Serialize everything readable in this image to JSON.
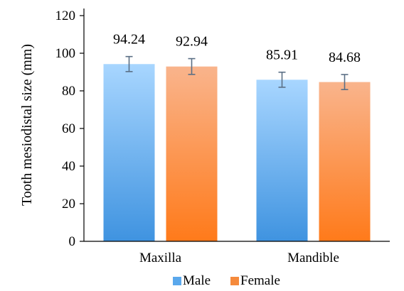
{
  "chart_data": {
    "type": "bar",
    "categories": [
      "Maxilla",
      "Mandible"
    ],
    "series": [
      {
        "name": "Male",
        "values": [
          94.24,
          85.91
        ],
        "error": [
          4.0,
          4.0
        ],
        "color_top": "#a8d6ff",
        "color_bottom": "#3f93e0",
        "legend_color": "#5aa8ec"
      },
      {
        "name": "Female",
        "values": [
          92.94,
          84.68
        ],
        "error": [
          4.2,
          4.0
        ],
        "color_top": "#f9b48c",
        "color_bottom": "#ff7a1a",
        "legend_color": "#f58a3c"
      }
    ],
    "data_labels": [
      [
        "94.24",
        "85.91"
      ],
      [
        "92.94",
        "84.68"
      ]
    ],
    "ylabel": "Tooth mesiodistal size (mm)",
    "xlabel": "",
    "ylim": [
      0,
      120
    ],
    "yticks": [
      0,
      20,
      40,
      60,
      80,
      100,
      120
    ],
    "grid": false,
    "legend": "bottom-center",
    "error_bar_color": "#5b6f85"
  }
}
